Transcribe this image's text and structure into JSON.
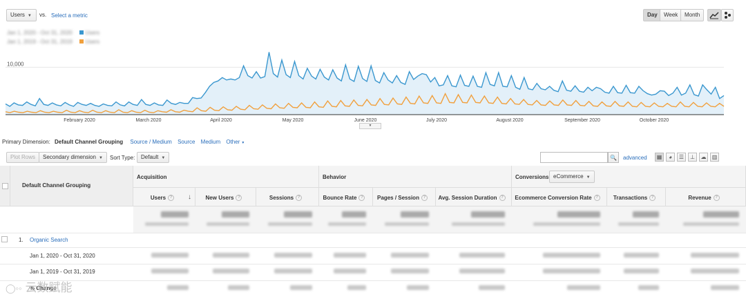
{
  "metric_selector": {
    "value": "Users",
    "vs": "vs.",
    "select_metric": "Select a metric"
  },
  "legend": {
    "row1_dates": "Jan 1, 2020 - Oct 31, 2020",
    "row1_metric": "Users",
    "row2_dates": "Jan 1, 2019 - Oct 31, 2019",
    "row2_metric": "Users"
  },
  "granularity": {
    "day": "Day",
    "week": "Week",
    "month": "Month"
  },
  "chart_data": {
    "type": "line",
    "y_tick_label": "10,000",
    "x_tick_labels": [
      "February 2020",
      "March 2020",
      "April 2020",
      "May 2020",
      "June 2020",
      "July 2020",
      "August 2020",
      "September 2020",
      "October 2020"
    ],
    "series": [
      {
        "color": "#3a97cf",
        "values": [
          2200,
          1700,
          2400,
          2000,
          1900,
          2600,
          2100,
          1800,
          3300,
          2100,
          1900,
          2400,
          2000,
          1800,
          2500,
          2000,
          1700,
          2500,
          2100,
          1900,
          2300,
          1900,
          1700,
          2200,
          1900,
          1800,
          2600,
          2000,
          1800,
          2600,
          2100,
          1900,
          3100,
          2100,
          1900,
          2400,
          2000,
          1900,
          3000,
          2300,
          2100,
          2500,
          2300,
          2300,
          3500,
          3300,
          3400,
          4500,
          5800,
          6600,
          6900,
          7600,
          7100,
          7300,
          7100,
          7600,
          10000,
          8000,
          7500,
          8800,
          7500,
          7800,
          12800,
          8400,
          7700,
          11200,
          8200,
          7600,
          10900,
          8000,
          7300,
          9500,
          7900,
          7300,
          9300,
          7700,
          7100,
          9200,
          7500,
          6900,
          10200,
          7300,
          6800,
          9900,
          7400,
          6800,
          10000,
          7000,
          6500,
          8600,
          7100,
          6500,
          8000,
          6600,
          6200,
          8800,
          7200,
          7900,
          8400,
          8200,
          6700,
          7600,
          5900,
          6100,
          8000,
          5900,
          5700,
          8100,
          6000,
          5800,
          7900,
          5800,
          5600,
          8600,
          6200,
          5900,
          8600,
          5800,
          5700,
          8000,
          5600,
          5200,
          7600,
          5300,
          5100,
          6400,
          5300,
          5100,
          5800,
          5000,
          4700,
          6900,
          5000,
          4800,
          5900,
          4800,
          4600,
          5600,
          4900,
          5600,
          5300,
          4600,
          4400,
          5800,
          4500,
          4400,
          6000,
          4500,
          4400,
          5800,
          4900,
          4300,
          4000,
          4200,
          4900,
          4800,
          3900,
          4400,
          5600,
          4000,
          4400,
          6100,
          4100,
          3800,
          6100,
          5100,
          4200,
          5600,
          3300,
          3900
        ]
      },
      {
        "color": "#f1a03d",
        "values": [
          600,
          400,
          700,
          500,
          400,
          700,
          500,
          400,
          800,
          500,
          400,
          700,
          500,
          400,
          900,
          500,
          400,
          800,
          500,
          400,
          900,
          500,
          400,
          800,
          500,
          400,
          1000,
          500,
          400,
          800,
          500,
          400,
          900,
          500,
          400,
          800,
          600,
          500,
          1000,
          600,
          500,
          900,
          700,
          600,
          1400,
          800,
          700,
          1500,
          900,
          800,
          1600,
          1000,
          900,
          1700,
          1100,
          1000,
          1900,
          1200,
          1100,
          2000,
          1300,
          1200,
          2200,
          1400,
          1300,
          2300,
          1500,
          1400,
          2400,
          1500,
          1400,
          2600,
          1600,
          1500,
          2800,
          1700,
          1600,
          2900,
          1800,
          1700,
          3000,
          1900,
          1800,
          3100,
          2000,
          1900,
          3300,
          2100,
          2000,
          3400,
          2200,
          2100,
          3600,
          2300,
          2200,
          3800,
          2400,
          2300,
          3900,
          2400,
          2300,
          4300,
          2500,
          2400,
          4100,
          2500,
          2400,
          4000,
          2500,
          2400,
          3800,
          2400,
          2300,
          3600,
          2300,
          2200,
          3300,
          2200,
          2100,
          3100,
          2100,
          2000,
          2900,
          2000,
          1900,
          2800,
          2000,
          1900,
          3000,
          2000,
          1900,
          2900,
          1900,
          1800,
          2700,
          1800,
          1700,
          2600,
          1800,
          1700,
          2700,
          1800,
          1700,
          2600,
          1700,
          1600,
          2500,
          1700,
          1600,
          2400,
          1700,
          1600,
          2300,
          1700,
          1600,
          2600,
          1700,
          1600,
          2500,
          1700,
          1600,
          2400,
          1700,
          1600,
          2300,
          1700
        ]
      }
    ],
    "ylim": [
      0,
      15000
    ]
  },
  "primary_dimension": {
    "label": "Primary Dimension:",
    "current": "Default Channel Grouping",
    "options": [
      "Source / Medium",
      "Source",
      "Medium",
      "Other"
    ]
  },
  "toolbar": {
    "plot_rows": "Plot Rows",
    "secondary_dimension": "Secondary dimension",
    "sort_type_label": "Sort Type:",
    "sort_type_value": "Default",
    "advanced": "advanced"
  },
  "table": {
    "dimension_header": "Default Channel Grouping",
    "groups": {
      "acquisition": "Acquisition",
      "behavior": "Behavior",
      "conversions": "Conversions",
      "conversion_type": "eCommerce"
    },
    "columns": [
      "Users",
      "New Users",
      "Sessions",
      "Bounce Rate",
      "Pages / Session",
      "Avg. Session Duration",
      "Ecommerce Conversion Rate",
      "Transactions",
      "Revenue"
    ],
    "rows": [
      {
        "index": "1.",
        "label": "Organic Search"
      },
      {
        "label": "Jan 1, 2020 - Oct 31, 2020"
      },
      {
        "label": "Jan 1, 2019 - Oct 31, 2019"
      },
      {
        "label": "% Change"
      }
    ]
  },
  "watermark": "云数赋能"
}
